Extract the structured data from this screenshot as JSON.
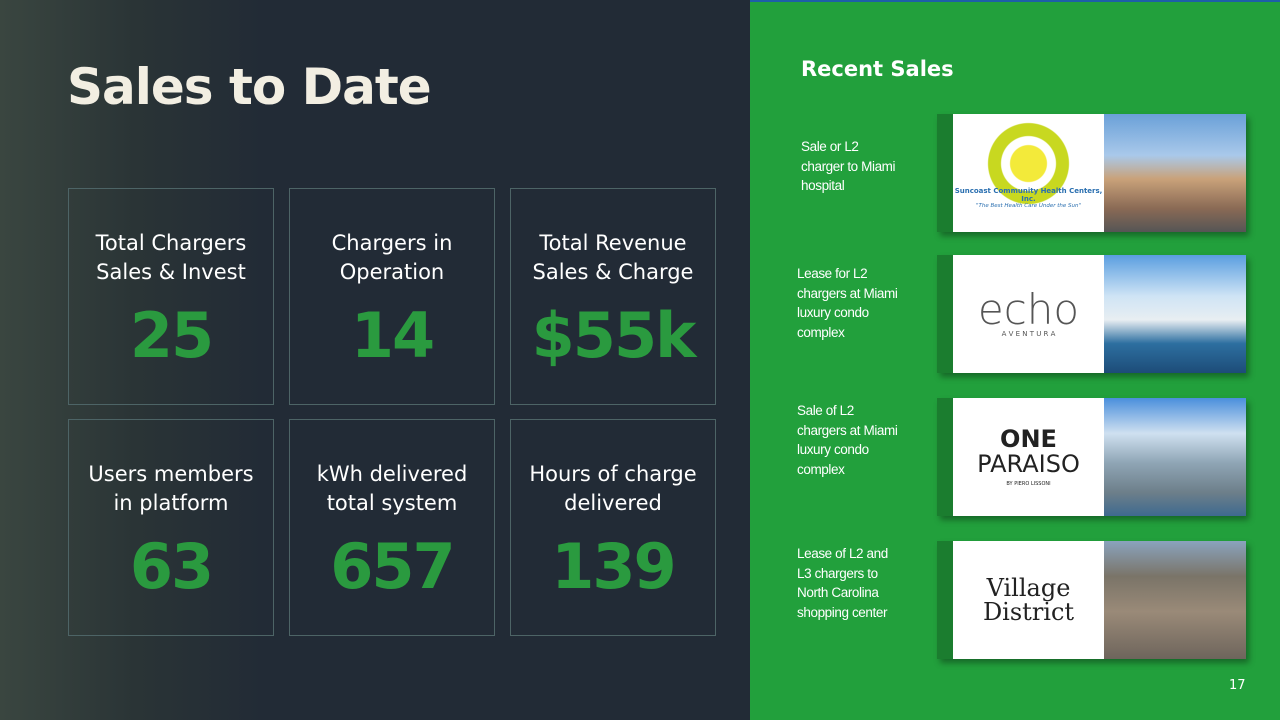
{
  "title": "Sales to Date",
  "metrics": [
    {
      "label": [
        "Total Chargers",
        "Sales & Invest"
      ],
      "value": "25"
    },
    {
      "label": [
        "Chargers in",
        "Operation"
      ],
      "value": "14"
    },
    {
      "label": [
        "Total Revenue",
        "Sales & Charge"
      ],
      "value": "$55k"
    },
    {
      "label": [
        "Users members",
        "in platform"
      ],
      "value": "63"
    },
    {
      "label": [
        "kWh delivered",
        "total system"
      ],
      "value": "657"
    },
    {
      "label": [
        "Hours of charge",
        "delivered"
      ],
      "value": "139"
    }
  ],
  "recent_sales": {
    "title": "Recent Sales",
    "items": [
      {
        "description": [
          "Sale or L2",
          "charger to Miami",
          "hospital"
        ],
        "logo": [
          "Suncoast Community Health Centers, Inc.",
          "\"The Best Health Care Under the Sun\""
        ]
      },
      {
        "description": [
          "Lease for L2",
          "chargers at Miami",
          "luxury condo",
          "complex"
        ],
        "logo": [
          "echo",
          "A V E N T U R A"
        ]
      },
      {
        "description": [
          "Sale of L2",
          "chargers at Miami",
          "luxury condo",
          "complex"
        ],
        "logo": [
          "ONE",
          "PARAISO",
          "BY PIERO LISSONI"
        ]
      },
      {
        "description": [
          "Lease of L2 and",
          "L3 chargers to",
          "North Carolina",
          "shopping center"
        ],
        "logo": [
          "Village",
          "District"
        ]
      }
    ]
  },
  "page_number": "17"
}
